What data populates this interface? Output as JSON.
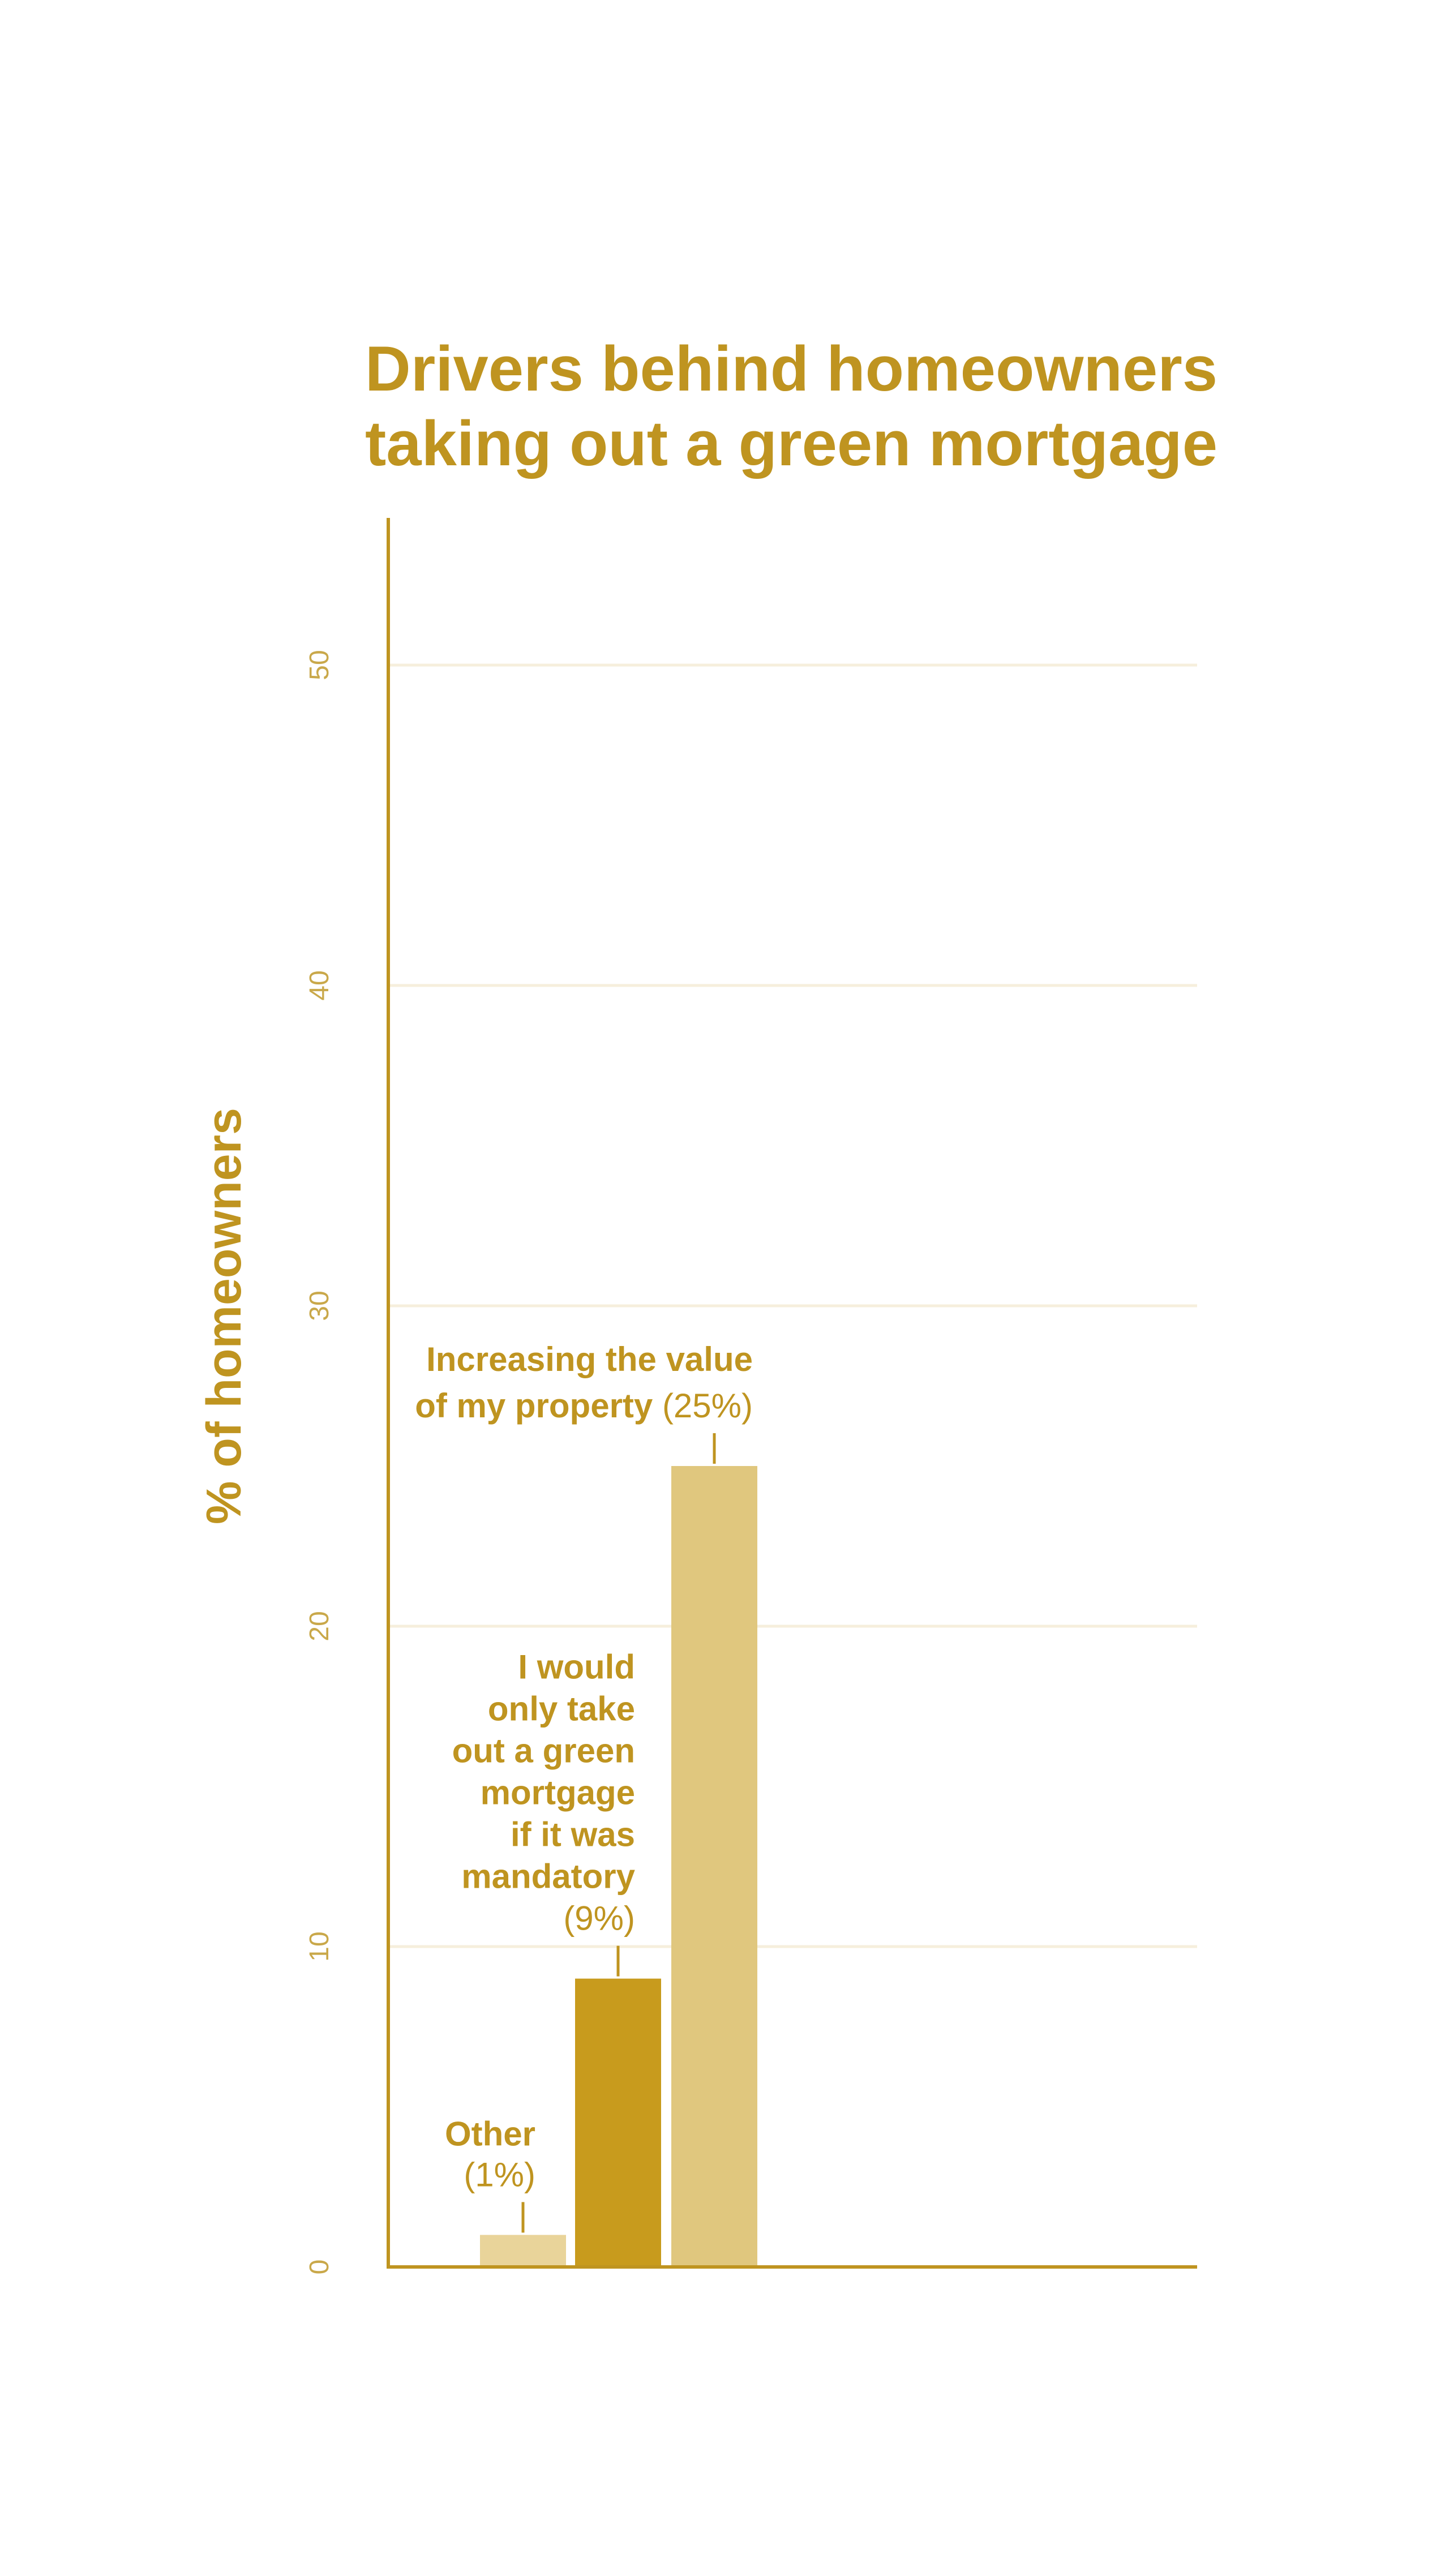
{
  "colors": {
    "text": "#bf9420",
    "axis": "#bf9420",
    "grid": "#f6efdc",
    "tick": "#c9a84a"
  },
  "chart_data": {
    "type": "bar",
    "title": [
      "Drivers behind homeowners",
      "taking out a green mortgage"
    ],
    "ylabel": "% of homeowners",
    "xlabel": "",
    "ylim": [
      0,
      55
    ],
    "yticks": [
      0,
      10,
      20,
      30,
      40,
      50
    ],
    "grid": true,
    "categories": [
      "Other",
      "I would only take out a green mortgage if it was mandatory",
      "Increasing the value of my property"
    ],
    "values": [
      1,
      9,
      25
    ],
    "bar_colors": [
      "#e9d49a",
      "#c89b1d",
      "#e0c77e"
    ],
    "annotations": [
      {
        "lines": [
          [
            "Other"
          ],
          [
            "(1%)"
          ]
        ]
      },
      {
        "lines": [
          [
            "I would"
          ],
          [
            "only take"
          ],
          [
            "out a green"
          ],
          [
            "mortgage"
          ],
          [
            "if it was"
          ],
          [
            "mandatory"
          ],
          [
            "(9%)"
          ]
        ]
      },
      {
        "lines": [
          [
            "Increasing the value"
          ],
          [
            "of my property",
            " (25%)"
          ]
        ]
      }
    ]
  }
}
